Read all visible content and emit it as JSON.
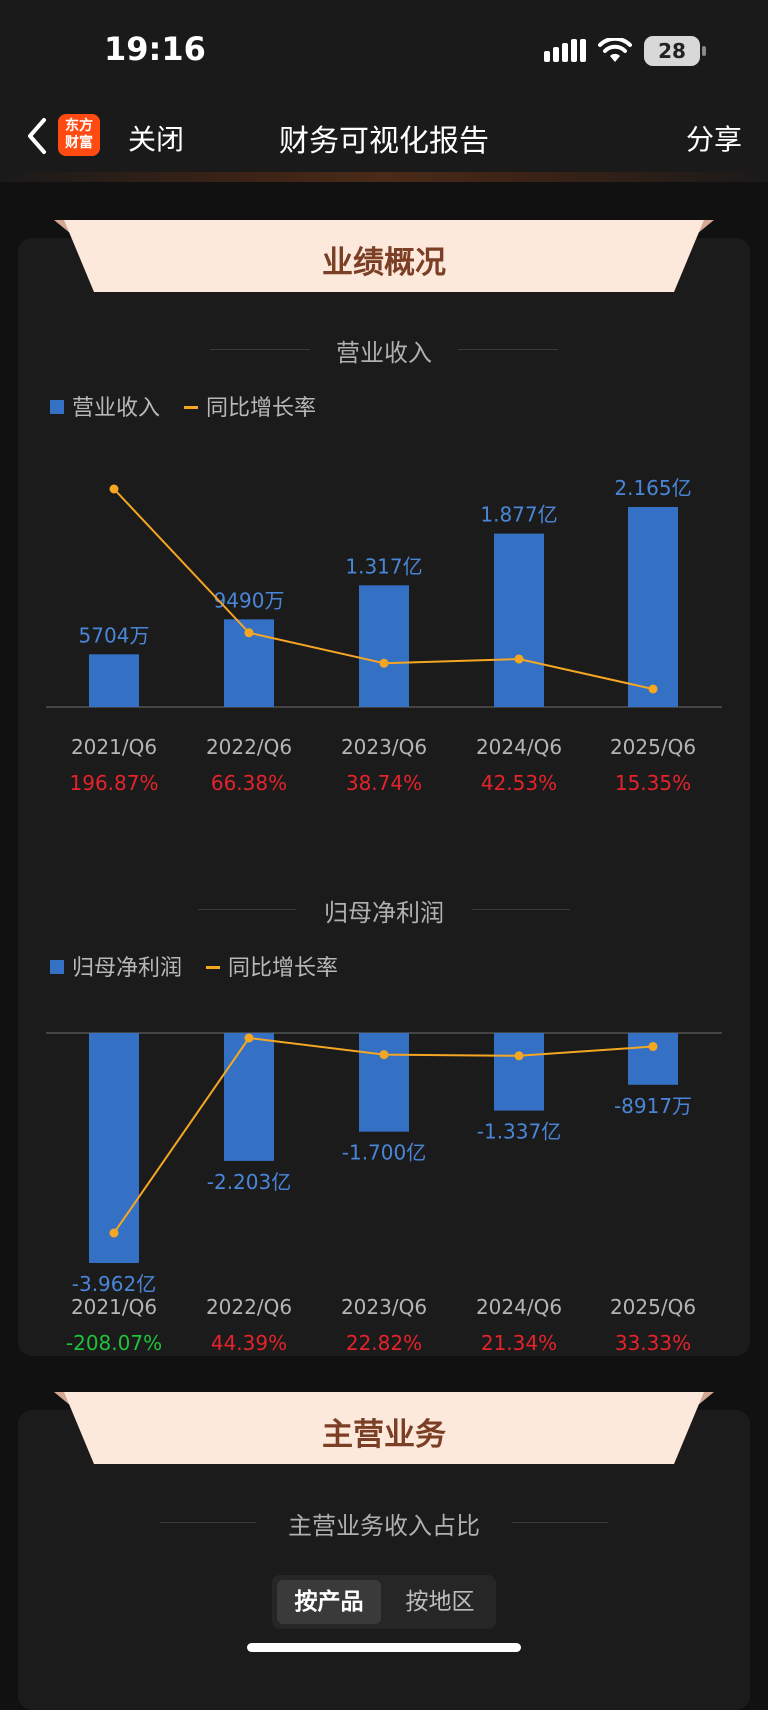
{
  "status": {
    "time": "19:16",
    "battery": "28"
  },
  "nav": {
    "close": "关闭",
    "title": "财务可视化报告",
    "share": "分享",
    "logo_line1": "东方",
    "logo_line2": "财富"
  },
  "section1": {
    "banner": "业绩概况"
  },
  "section2": {
    "banner": "主营业务",
    "subtitle": "主营业务收入占比",
    "tabs": [
      "按产品",
      "按地区"
    ],
    "active_tab": 0
  },
  "colors": {
    "bar": "#3470c4",
    "line": "#f5a623",
    "positive": "#e5232b",
    "negative": "#1fc23a",
    "bar_label": "#4a86d8"
  },
  "chart_data": [
    {
      "type": "bar",
      "title": "营业收入",
      "categories": [
        "2021/Q6",
        "2022/Q6",
        "2023/Q6",
        "2024/Q6",
        "2025/Q6"
      ],
      "series": [
        {
          "name": "营业收入",
          "type": "bar",
          "values": [
            0.5704,
            0.949,
            1.317,
            1.877,
            2.165
          ],
          "labels": [
            "5704万",
            "9490万",
            "1.317亿",
            "1.877亿",
            "2.165亿"
          ]
        },
        {
          "name": "同比增长率",
          "type": "line",
          "values": [
            196.87,
            66.38,
            38.74,
            42.53,
            15.35
          ],
          "labels": [
            "196.87%",
            "66.38%",
            "38.74%",
            "42.53%",
            "15.35%"
          ]
        }
      ],
      "legend": "top-left"
    },
    {
      "type": "bar",
      "title": "归母净利润",
      "categories": [
        "2021/Q6",
        "2022/Q6",
        "2023/Q6",
        "2024/Q6",
        "2025/Q6"
      ],
      "series": [
        {
          "name": "归母净利润",
          "type": "bar",
          "values": [
            -3.962,
            -2.203,
            -1.7,
            -1.337,
            -0.8917
          ],
          "labels": [
            "-3.962亿",
            "-2.203亿",
            "-1.700亿",
            "-1.337亿",
            "-8917万"
          ]
        },
        {
          "name": "同比增长率",
          "type": "line",
          "values": [
            -208.07,
            44.39,
            22.82,
            21.34,
            33.33
          ],
          "labels": [
            "-208.07%",
            "44.39%",
            "22.82%",
            "21.34%",
            "33.33%"
          ]
        }
      ],
      "legend": "top-left"
    }
  ]
}
